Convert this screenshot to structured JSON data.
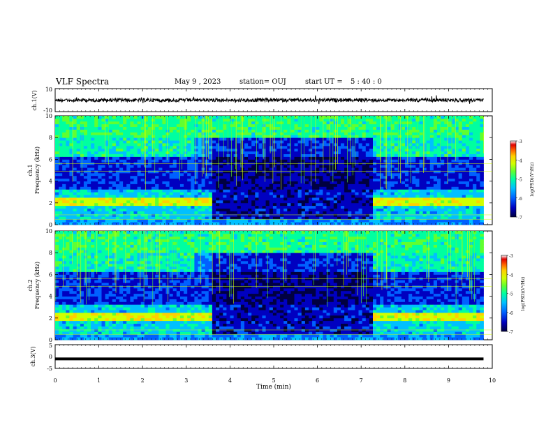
{
  "header": {
    "title": "VLF Spectra",
    "date": "May 9  , 2023",
    "station": "station= OUJ",
    "start_label": "start  UT  =",
    "start_h": "5",
    "start_m": "40",
    "start_s": "0"
  },
  "colorbar": {
    "label": "log(PSD)(V²/Hz)",
    "ticks": [
      "-3",
      "-4",
      "-5",
      "-6",
      "-7"
    ],
    "colors": [
      "#000040",
      "#0000c0",
      "#0060ff",
      "#00c0ff",
      "#00ffa0",
      "#60ff30",
      "#d0ff00",
      "#ffd000",
      "#ff6000",
      "#e00000",
      "#ffffff"
    ]
  },
  "chart_data": [
    {
      "type": "line",
      "panel": "ch1 waveform",
      "ylabel": "ch.1(V)",
      "yticks": [
        "10",
        "-10"
      ],
      "ylim": [
        -10,
        10
      ],
      "x": [
        0,
        1,
        2,
        3,
        4,
        5,
        6,
        7,
        8,
        9,
        9.8
      ],
      "values": [
        0,
        0,
        0,
        0,
        0,
        0,
        0,
        0,
        0,
        0,
        0
      ]
    },
    {
      "type": "heatmap",
      "panel": "ch1 spectrogram",
      "ylabel_top": "ch.1",
      "ylabel": "Frequency (kHz)",
      "yticks": [
        "10",
        "8",
        "6",
        "4",
        "2",
        "0"
      ],
      "ylim": [
        0,
        10
      ],
      "segments": [
        {
          "t": [
            0,
            3.2
          ],
          "level": "high"
        },
        {
          "t": [
            3.2,
            3.6
          ],
          "level": "mid"
        },
        {
          "t": [
            3.6,
            7.3
          ],
          "level": "low"
        },
        {
          "t": [
            7.3,
            9.8
          ],
          "level": "high"
        }
      ]
    },
    {
      "type": "heatmap",
      "panel": "ch2 spectrogram",
      "ylabel_top": "ch.2",
      "ylabel": "Frequency (kHz)",
      "yticks": [
        "10",
        "8",
        "6",
        "4",
        "2",
        "0"
      ],
      "ylim": [
        0,
        10
      ],
      "segments": [
        {
          "t": [
            0,
            3.2
          ],
          "level": "high"
        },
        {
          "t": [
            3.2,
            3.6
          ],
          "level": "mid"
        },
        {
          "t": [
            3.6,
            7.3
          ],
          "level": "low"
        },
        {
          "t": [
            7.3,
            9.8
          ],
          "level": "high"
        }
      ]
    },
    {
      "type": "line",
      "panel": "ch3 waveform",
      "ylabel": "ch.3(V)",
      "yticks": [
        "5",
        "0",
        "-5"
      ],
      "ylim": [
        -5,
        5
      ],
      "x": [
        0,
        9.8
      ],
      "values": [
        -1,
        -1
      ]
    }
  ],
  "xaxis": {
    "label": "Time (min)",
    "ticks": [
      "0",
      "1",
      "2",
      "3",
      "4",
      "5",
      "6",
      "7",
      "8",
      "9",
      "10"
    ],
    "range": [
      0,
      10
    ]
  }
}
